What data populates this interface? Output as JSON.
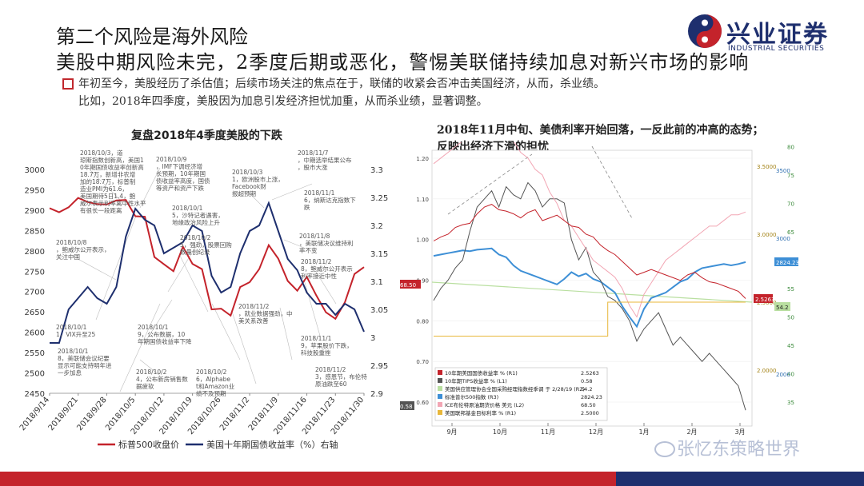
{
  "header": {
    "title_line1": "第二个风险是海外风险",
    "title_line2": "美股中期风险未完，2季度后期或恶化，警惕美联储持续加息对新兴市场的影响"
  },
  "logo": {
    "brand": "兴业证券",
    "sub": "INDUSTRIAL SECURITIES"
  },
  "body": {
    "line1": "年初至今，美股经历了杀估值；后续市场关注的焦点在于，联储的收紧会否冲击美国经济，从而，杀业绩。",
    "line2": "比如，2018年四季度，美股因为加息引发经济担忧加重，从而杀业绩，显著调整。"
  },
  "watermark": "张忆东策略世界",
  "colors": {
    "red": "#c4232b",
    "navy": "#1e2f6e",
    "blue": "#3d8fd6",
    "pink": "#f2a6b4",
    "gray": "#555555",
    "gold": "#e8b73a",
    "lightgreen": "#b9dfa0"
  },
  "chart_data": [
    {
      "type": "line",
      "title": "复盘2018年4季度美股的下跌",
      "x": [
        "2018/9/14",
        "2018/9/17",
        "2018/9/19",
        "2018/9/21",
        "2018/9/24",
        "2018/9/26",
        "2018/9/28",
        "2018/10/1",
        "2018/10/3",
        "2018/10/5",
        "2018/10/8",
        "2018/10/10",
        "2018/10/12",
        "2018/10/15",
        "2018/10/17",
        "2018/10/19",
        "2018/10/22",
        "2018/10/24",
        "2018/10/26",
        "2018/10/29",
        "2018/10/31",
        "2018/11/2",
        "2018/11/5",
        "2018/11/7",
        "2018/11/9",
        "2018/11/12",
        "2018/11/14",
        "2018/11/16",
        "2018/11/19",
        "2018/11/21",
        "2018/11/23",
        "2018/11/26",
        "2018/11/28",
        "2018/11/30"
      ],
      "x_ticks": [
        "2018/9/14",
        "2018/9/21",
        "2018/9/28",
        "2018/10/5",
        "2018/10/12",
        "2018/10/19",
        "2018/10/26",
        "2018/11/2",
        "2018/11/9",
        "2018/11/16",
        "2018/11/23",
        "2018/11/30"
      ],
      "y_left": {
        "min": 2450,
        "max": 3000,
        "ticks": [
          2450,
          2500,
          2550,
          2600,
          2650,
          2700,
          2750,
          2800,
          2850,
          2900,
          2950,
          3000
        ]
      },
      "y_right": {
        "min": 2.9,
        "max": 3.3,
        "ticks": [
          2.9,
          2.95,
          3,
          3.05,
          3.1,
          3.15,
          3.2,
          3.25,
          3.3
        ]
      },
      "series": [
        {
          "name": "标普500收盘价",
          "axis": "left",
          "color": "#c4232b",
          "values": [
            2905,
            2895,
            2907,
            2930,
            2920,
            2915,
            2914,
            2924,
            2925,
            2885,
            2884,
            2785,
            2767,
            2750,
            2810,
            2768,
            2755,
            2656,
            2658,
            2641,
            2711,
            2723,
            2755,
            2814,
            2781,
            2726,
            2702,
            2736,
            2690,
            2649,
            2633,
            2674,
            2743,
            2760
          ]
        },
        {
          "name": "美国十年期国债收益率（%）右轴",
          "axis": "right",
          "color": "#1e2f6e",
          "values": [
            2.99,
            2.99,
            3.05,
            3.07,
            3.09,
            3.07,
            3.06,
            3.09,
            3.18,
            3.23,
            3.21,
            3.2,
            3.15,
            3.16,
            3.17,
            3.2,
            3.19,
            3.11,
            3.08,
            3.09,
            3.15,
            3.19,
            3.2,
            3.24,
            3.19,
            3.14,
            3.12,
            3.08,
            3.06,
            3.06,
            3.04,
            3.06,
            3.05,
            3.01
          ]
        }
      ],
      "annotations": [
        "2018/10/3，道琼斯指数创新高，美国10年期国债收益率创新高18.7万，新增非农增加的18.7万，标普制造业PMI为61.6，美国期待5日1.4，鲍威尔表示利率离中性水平有很长一段距离",
        "2018/10/9，IMF下调经济增长预期，10年期国债收益率高度，国债等资产和资产下跌",
        "2018/10/8，鲍威尔公开表示，关注中国",
        "2018/10/11，VIX升至25",
        "2018/10/15，沙特记者遇害，地缘政治风险上升",
        "2018/10/18，美联储会议纪要显示可能支持明年进一步加息",
        "2018/10/19，公布数据，10年期国债收益率下降",
        "2018/10/24，公布新房销售数据疲软",
        "2018/10/25，强劲，股票回购数量创纪录",
        "2018/10/26，Alphabet和Amazon业绩不及预期",
        "2018/10/31，欧洲股市上涨，Facebook财报超预期",
        "2018/11/2，就业数据强劲，中美关系改善",
        "2018/11/7，中期选举结果公布，股市大涨",
        "2018/11/8，美联储决议维持利率不变",
        "2018/11/16，纳斯达克指数下跌",
        "2018/11/19，苹果股价下跌，科技股重挫",
        "2018/11/23，感恩节，布伦特原油跌至60",
        "2018/11/28，鲍威尔公开表示利率接近中性"
      ]
    },
    {
      "type": "line",
      "title": "2018年11月中旬、美债利率开始回落，一反此前的冲高的态势；反映出经济下滑的担忧",
      "x_ticks": [
        "9月",
        "10月",
        "11月",
        "12月",
        "1月",
        "2月",
        "3月"
      ],
      "x_year": "2018",
      "y_left": {
        "min": 0.6,
        "max": 1.2,
        "ticks": [
          "0.60",
          "0.70",
          "0.80",
          "0.90",
          "1.00",
          "1.10",
          "1.20"
        ]
      },
      "y_right1": {
        "ticks": [
          "2.0000",
          "2.5000",
          "3.0000",
          "3.5000"
        ]
      },
      "y_right2": {
        "ticks": [
          "35",
          "40",
          "45",
          "50",
          "55",
          "60",
          "65",
          "70",
          "75",
          "80"
        ]
      },
      "y_right3": {
        "ticks": [
          "2000",
          "2500",
          "3000",
          "3500"
        ]
      },
      "legend": [
        {
          "label": "10年期美国国债收益率 % (R1)",
          "value": "2.5263",
          "color": "#c4232b"
        },
        {
          "label": "10年期TIPS收益率 % (L1)",
          "value": "0.58",
          "color": "#555555"
        },
        {
          "label": "美国供应管理协会全国采购经理指数经季调 于 2/28/19 (R2)",
          "value": "54.2",
          "color": "#b9dfa0"
        },
        {
          "label": "标准普尔500指数 (R3)",
          "value": "2824.23",
          "color": "#3d8fd6"
        },
        {
          "label": "ICE布伦特原油期货价格 美元 (L2)",
          "value": "68.50",
          "color": "#f2a6b4"
        },
        {
          "label": "美国联邦基金目标利率 % (R1)",
          "value": "2.5000",
          "color": "#e8b73a"
        }
      ],
      "end_labels": {
        "brent": "68.50",
        "tips": "0.58",
        "spx": "2824.23",
        "yield": "2.5263",
        "pmi": "54.2"
      },
      "series": [
        {
          "name": "标准普尔500指数 (R3)",
          "color": "#3d8fd6",
          "values": [
            2870,
            2880,
            2890,
            2900,
            2910,
            2905,
            2915,
            2920,
            2925,
            2880,
            2860,
            2800,
            2760,
            2740,
            2720,
            2700,
            2680,
            2660,
            2700,
            2750,
            2720,
            2740,
            2700,
            2680,
            2640,
            2600,
            2500,
            2420,
            2350,
            2480,
            2560,
            2580,
            2600,
            2640,
            2680,
            2700,
            2750,
            2780,
            2790,
            2800,
            2810,
            2800,
            2810,
            2824
          ]
        },
        {
          "name": "10年期TIPS收益率 % (L1)",
          "color": "#555555",
          "values": [
            0.85,
            0.88,
            0.9,
            0.93,
            0.95,
            1.02,
            1.08,
            1.1,
            1.12,
            1.08,
            1.13,
            1.11,
            1.1,
            1.14,
            1.12,
            1.08,
            1.1,
            1.1,
            1.09,
            1.0,
            0.95,
            0.98,
            0.92,
            0.9,
            0.86,
            0.85,
            0.83,
            0.8,
            0.75,
            0.78,
            0.8,
            0.82,
            0.78,
            0.74,
            0.76,
            0.74,
            0.72,
            0.7,
            0.72,
            0.7,
            0.68,
            0.66,
            0.64,
            0.58
          ]
        },
        {
          "name": "ICE布伦特原油期货价格 美元 (L2)",
          "color": "#f2a6b4",
          "values": [
            77,
            78,
            79,
            80,
            81,
            82,
            84,
            85,
            86,
            84,
            83,
            81,
            79,
            78,
            76,
            75,
            72,
            70,
            67,
            66,
            64,
            62,
            60,
            59,
            58,
            57,
            55,
            52,
            50,
            54,
            56,
            58,
            60,
            61,
            62,
            63,
            64,
            65,
            66,
            66,
            67,
            68,
            68,
            68.5
          ]
        },
        {
          "name": "10年期美国国债收益率 % (R1)",
          "color": "#c4232b",
          "values": [
            2.95,
            2.98,
            3.0,
            3.05,
            3.07,
            3.08,
            3.15,
            3.2,
            3.22,
            3.18,
            3.17,
            3.15,
            3.12,
            3.16,
            3.18,
            3.1,
            3.12,
            3.14,
            3.1,
            3.06,
            3.05,
            3.0,
            2.98,
            2.92,
            2.88,
            2.85,
            2.8,
            2.75,
            2.7,
            2.72,
            2.74,
            2.72,
            2.7,
            2.68,
            2.66,
            2.7,
            2.72,
            2.68,
            2.65,
            2.64,
            2.62,
            2.6,
            2.58,
            2.5263
          ]
        },
        {
          "name": "美国联邦基金目标利率 % (R1)",
          "color": "#e8b73a",
          "values": [
            2.25,
            2.25,
            2.25,
            2.25,
            2.25,
            2.25,
            2.25,
            2.25,
            2.25,
            2.25,
            2.25,
            2.25,
            2.25,
            2.25,
            2.25,
            2.25,
            2.25,
            2.25,
            2.25,
            2.25,
            2.25,
            2.25,
            2.25,
            2.25,
            2.5,
            2.5,
            2.5,
            2.5,
            2.5,
            2.5,
            2.5,
            2.5,
            2.5,
            2.5,
            2.5,
            2.5,
            2.5,
            2.5,
            2.5,
            2.5,
            2.5,
            2.5,
            2.5,
            2.5
          ]
        }
      ]
    }
  ]
}
